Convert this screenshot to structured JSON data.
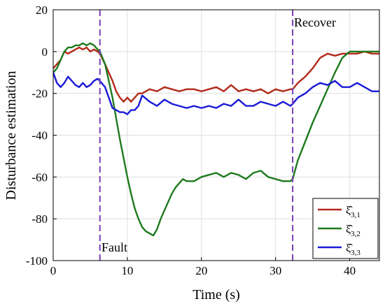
{
  "chart_data": {
    "type": "line",
    "title": "",
    "xlabel": "Time (s)",
    "ylabel": "Disturbance estimation",
    "xlim": [
      0,
      44
    ],
    "ylim": [
      -100,
      20
    ],
    "xticks": [
      "0",
      "10",
      "20",
      "30",
      "40"
    ],
    "yticks": [
      "20",
      "0",
      "-20",
      "-40",
      "-60",
      "-80",
      "-100"
    ],
    "grid": true,
    "legend_position": "bottom-right",
    "annotations": {
      "fault_label": "Fault",
      "fault_x": 6.3,
      "recover_label": "Recover",
      "recover_x": 32.3
    },
    "series": [
      {
        "name": "ξ̂3,1",
        "name_base": "ξ̂",
        "name_sub": "3,1",
        "color": "#b22a1a",
        "x": [
          0,
          0.5,
          1,
          1.5,
          2,
          2.5,
          3,
          3.5,
          4,
          4.5,
          5,
          5.5,
          6,
          6.3,
          7,
          7.5,
          8,
          8.5,
          9,
          9.5,
          10,
          10.5,
          11,
          11.5,
          12,
          13,
          14,
          15,
          16,
          17,
          18,
          19,
          20,
          21,
          22,
          23,
          24,
          25,
          26,
          27,
          28,
          29,
          30,
          31,
          32,
          32.3,
          33,
          34,
          35,
          36,
          37,
          38,
          39,
          40,
          41,
          42,
          43,
          44
        ],
        "y": [
          -8,
          -6,
          -4,
          0,
          -1,
          0,
          1,
          2,
          1,
          2,
          0,
          1,
          0,
          -1,
          -6,
          -10,
          -14,
          -19,
          -22,
          -24,
          -22,
          -24,
          -22,
          -20,
          -20,
          -18,
          -19,
          -17,
          -18,
          -19,
          -18,
          -18,
          -19,
          -18,
          -17,
          -19,
          -16,
          -19,
          -18,
          -19,
          -18,
          -20,
          -18,
          -19,
          -18,
          -18,
          -15,
          -12,
          -8,
          -3,
          -1,
          -2,
          -1,
          -1,
          -1,
          0,
          -1,
          -1
        ]
      },
      {
        "name": "ξ̂3,2",
        "name_base": "ξ̂",
        "name_sub": "3,2",
        "color": "#1e7a1e",
        "x": [
          0,
          0.5,
          1,
          1.5,
          2,
          2.5,
          3,
          3.5,
          4,
          4.5,
          5,
          5.5,
          6,
          6.3,
          7,
          7.5,
          8,
          8.5,
          9,
          9.5,
          10,
          10.5,
          11,
          11.5,
          12,
          12.5,
          13,
          13.5,
          14,
          14.5,
          15,
          15.5,
          16,
          16.5,
          17,
          17.5,
          18,
          19,
          20,
          21,
          22,
          23,
          24,
          25,
          26,
          27,
          28,
          29,
          30,
          31,
          32,
          32.3,
          33,
          34,
          35,
          36,
          37,
          38,
          39,
          40,
          41,
          42,
          43,
          44
        ],
        "y": [
          -10,
          -8,
          -4,
          0,
          2,
          2,
          3,
          3,
          4,
          3,
          4,
          3,
          1,
          0,
          -6,
          -14,
          -22,
          -32,
          -42,
          -51,
          -60,
          -68,
          -75,
          -80,
          -84,
          -86,
          -87,
          -88,
          -85,
          -80,
          -76,
          -72,
          -68,
          -65,
          -63,
          -61,
          -62,
          -62,
          -60,
          -59,
          -58,
          -60,
          -58,
          -59,
          -61,
          -58,
          -57,
          -60,
          -61,
          -62,
          -62,
          -61,
          -52,
          -43,
          -34,
          -26,
          -18,
          -10,
          -3,
          0,
          0,
          0,
          0,
          0
        ]
      },
      {
        "name": "ξ̂3,3",
        "name_base": "ξ̂",
        "name_sub": "3,3",
        "color": "#1a1ad6",
        "x": [
          0,
          0.5,
          1,
          1.5,
          2,
          2.5,
          3,
          3.5,
          4,
          4.5,
          5,
          5.5,
          6,
          6.3,
          7,
          7.5,
          8,
          8.5,
          9,
          9.5,
          10,
          10.5,
          11,
          11.5,
          12,
          13,
          14,
          15,
          16,
          17,
          18,
          19,
          20,
          21,
          22,
          23,
          24,
          25,
          26,
          27,
          28,
          29,
          30,
          31,
          32,
          32.3,
          33,
          34,
          35,
          36,
          37,
          38,
          39,
          40,
          41,
          42,
          43,
          44
        ],
        "y": [
          -10,
          -15,
          -17,
          -15,
          -12,
          -14,
          -16,
          -17,
          -15,
          -17,
          -16,
          -14,
          -13,
          -14,
          -17,
          -22,
          -27,
          -28,
          -29,
          -29,
          -30,
          -28,
          -28,
          -26,
          -21,
          -24,
          -26,
          -23,
          -25,
          -26,
          -27,
          -26,
          -27,
          -26,
          -27,
          -25,
          -26,
          -23,
          -26,
          -26,
          -24,
          -25,
          -26,
          -24,
          -26,
          -25,
          -22,
          -20,
          -17,
          -15,
          -16,
          -14,
          -17,
          -17,
          -15,
          -17,
          -19,
          -19
        ]
      }
    ]
  }
}
